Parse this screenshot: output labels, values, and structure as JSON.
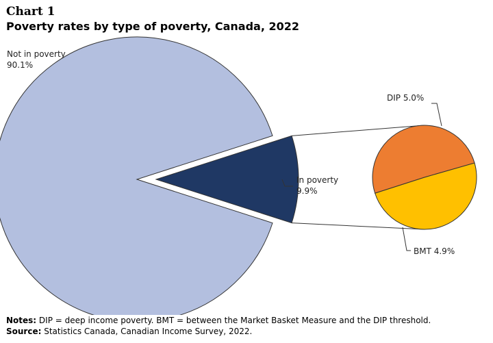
{
  "header": {
    "chart_number": "Chart 1",
    "title": "Poverty rates by type of poverty, Canada, 2022"
  },
  "labels": {
    "not_in_poverty_name": "Not in poverty",
    "not_in_poverty_value": "90.1%",
    "in_poverty_name": "In poverty",
    "in_poverty_value": "9.9%",
    "dip": "DIP 5.0%",
    "bmt": "BMT 4.9%"
  },
  "footer": {
    "notes_label": "Notes:",
    "notes_text": " DIP = deep income poverty. BMT = between the Market Basket Measure and the DIP threshold.",
    "source_label": "Source:",
    "source_text": " Statistics Canada, Canadian Income Survey, 2022."
  },
  "colors": {
    "not_in_poverty": "#b3bfdf",
    "in_poverty": "#1f3864",
    "dip": "#ed7d31",
    "bmt": "#ffc000",
    "outline": "#333333"
  },
  "chart_data": {
    "type": "pie",
    "title": "Poverty rates by type of poverty, Canada, 2022",
    "main_pie": [
      {
        "label": "Not in poverty",
        "value": 90.1
      },
      {
        "label": "In poverty",
        "value": 9.9
      }
    ],
    "breakdown_of": "In poverty",
    "breakdown_pie": [
      {
        "label": "DIP",
        "value": 5.0
      },
      {
        "label": "BMT",
        "value": 4.9
      }
    ]
  }
}
